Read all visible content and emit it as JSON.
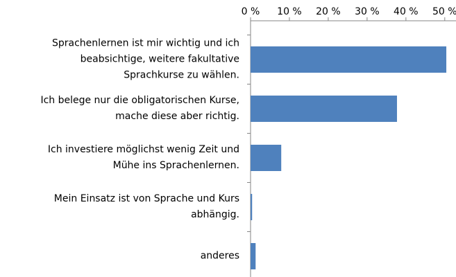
{
  "chart_data": {
    "type": "bar",
    "orientation": "horizontal",
    "categories": [
      "Sprachenlernen ist mir wichtig und ich\nbeabsichtige, weitere fakultative\nSprachkurse zu wählen.",
      "Ich belege nur die obligatorischen Kurse,\nmache diese aber richtig.",
      "Ich investiere möglichst wenig Zeit und\nMühe ins Sprachenlernen.",
      "Mein Einsatz ist  von Sprache und Kurs\nabhängig.",
      "anderes"
    ],
    "values": [
      50.4,
      37.7,
      7.9,
      0.4,
      1.3
    ],
    "color": "#4f81bd",
    "xlim": [
      0,
      52
    ],
    "xticks": [
      {
        "value": 0,
        "label": "0 %"
      },
      {
        "value": 10,
        "label": "10 %"
      },
      {
        "value": 20,
        "label": "20 %"
      },
      {
        "value": 30,
        "label": "30 %"
      },
      {
        "value": 40,
        "label": "40 %"
      },
      {
        "value": 50,
        "label": "50 %"
      }
    ],
    "grid": false
  }
}
